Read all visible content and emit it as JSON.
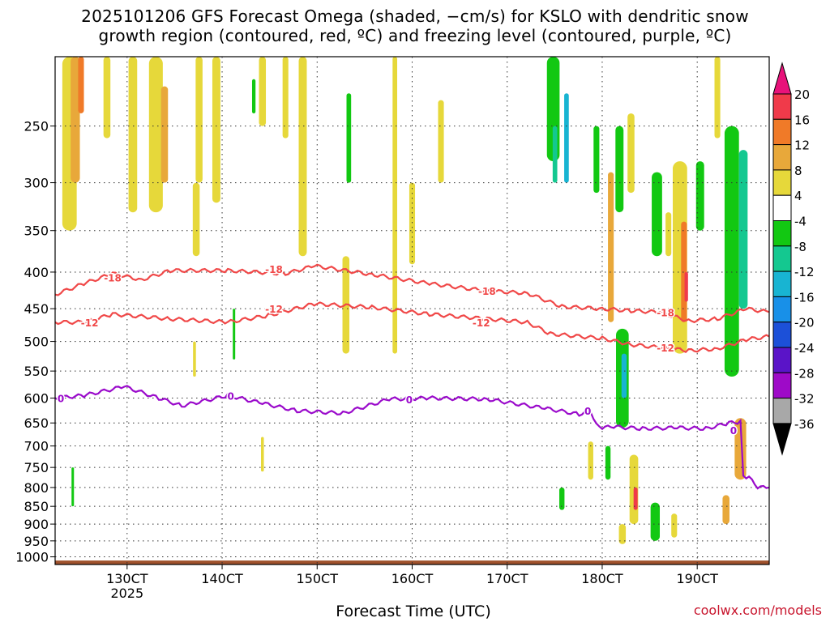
{
  "title_line1": "2025101206 GFS Forecast Omega (shaded, −cm/s) for KSLO with dendritic snow",
  "title_line2": "growth region (contoured, red, ºC) and freezing level (contoured, purple, ºC)",
  "credit": "coolwx.com/models",
  "colors": {
    "dgz": "#f04848",
    "freezing": "#9a0acb",
    "terrain": "#a0522d",
    "grid": "#333333"
  },
  "chart_data": {
    "type": "heatmap",
    "title": "2025101206 GFS Forecast Omega (shaded, −cm/s) for KSLO with dendritic snow growth region (contoured, red, ºC) and freezing level (contoured, purple, ºC)",
    "xlabel": "Forecast Time (UTC)",
    "ylabel": "",
    "x_range_hours": [
      0,
      124
    ],
    "y_range_hPa": [
      1025,
      200
    ],
    "y_scale": "log-pressure",
    "y_ticks": [
      250,
      300,
      350,
      400,
      450,
      500,
      550,
      600,
      650,
      700,
      750,
      800,
      850,
      900,
      950,
      1000
    ],
    "x_ticks": [
      {
        "hour": 12.5,
        "label": "130CT",
        "sublabel": "2025"
      },
      {
        "hour": 29,
        "label": "140CT"
      },
      {
        "hour": 45.5,
        "label": "150CT"
      },
      {
        "hour": 62,
        "label": "160CT"
      },
      {
        "hour": 78.5,
        "label": "170CT"
      },
      {
        "hour": 95,
        "label": "180CT"
      },
      {
        "hour": 111.5,
        "label": "190CT"
      }
    ],
    "colorbar": {
      "labels": [
        "20",
        "16",
        "12",
        "8",
        "4",
        "-4",
        "-8",
        "-12",
        "-16",
        "-20",
        "-24",
        "-28",
        "-32",
        "-36"
      ],
      "bins": [
        {
          "lo": 16,
          "hi": 20,
          "color": "#f03a4a"
        },
        {
          "lo": 12,
          "hi": 16,
          "color": "#f07a28"
        },
        {
          "lo": 8,
          "hi": 12,
          "color": "#e8a83a"
        },
        {
          "lo": 4,
          "hi": 8,
          "color": "#e6d83a"
        },
        {
          "lo": -4,
          "hi": 4,
          "color": "#ffffff"
        },
        {
          "lo": -8,
          "hi": -4,
          "color": "#12c812"
        },
        {
          "lo": -12,
          "hi": -8,
          "color": "#14c890"
        },
        {
          "lo": -16,
          "hi": -12,
          "color": "#18b4d2"
        },
        {
          "lo": -20,
          "hi": -16,
          "color": "#1890e8"
        },
        {
          "lo": -24,
          "hi": -20,
          "color": "#1c50d8"
        },
        {
          "lo": -28,
          "hi": -24,
          "color": "#5a14c8"
        },
        {
          "lo": -32,
          "hi": -28,
          "color": "#9e0ac8"
        },
        {
          "lo": -36,
          "hi": -32,
          "color": "#a8a8a8"
        }
      ],
      "top_arrow_color": "#e8127a",
      "bottom_arrow_color": "#000000"
    },
    "omega_blobs": [
      {
        "t": 2.5,
        "p1": 200,
        "p2": 350,
        "w": 2.5,
        "v": 5
      },
      {
        "t": 3.5,
        "p1": 200,
        "p2": 300,
        "w": 1.6,
        "v": 9
      },
      {
        "t": 4.5,
        "p1": 200,
        "p2": 240,
        "w": 1.0,
        "v": 13
      },
      {
        "t": 9,
        "p1": 200,
        "p2": 260,
        "w": 1.2,
        "v": 5
      },
      {
        "t": 13.5,
        "p1": 200,
        "p2": 330,
        "w": 1.5,
        "v": 5
      },
      {
        "t": 17.5,
        "p1": 200,
        "p2": 330,
        "w": 2.4,
        "v": 5
      },
      {
        "t": 19,
        "p1": 220,
        "p2": 300,
        "w": 1.2,
        "v": 9
      },
      {
        "t": 25,
        "p1": 200,
        "p2": 300,
        "w": 1.2,
        "v": 5
      },
      {
        "t": 28,
        "p1": 200,
        "p2": 320,
        "w": 1.4,
        "v": 5
      },
      {
        "t": 24.5,
        "p1": 300,
        "p2": 380,
        "w": 1.2,
        "v": 5
      },
      {
        "t": 36,
        "p1": 200,
        "p2": 250,
        "w": 1.2,
        "v": 5
      },
      {
        "t": 34.5,
        "p1": 215,
        "p2": 240,
        "w": 0.6,
        "v": -5
      },
      {
        "t": 43,
        "p1": 200,
        "p2": 380,
        "w": 1.4,
        "v": 5
      },
      {
        "t": 40,
        "p1": 200,
        "p2": 260,
        "w": 1.0,
        "v": 5
      },
      {
        "t": 50.5,
        "p1": 380,
        "p2": 520,
        "w": 1.2,
        "v": 5
      },
      {
        "t": 51,
        "p1": 225,
        "p2": 300,
        "w": 0.8,
        "v": -5
      },
      {
        "t": 59,
        "p1": 200,
        "p2": 520,
        "w": 0.8,
        "v": 5
      },
      {
        "t": 67,
        "p1": 230,
        "p2": 300,
        "w": 1.0,
        "v": 5
      },
      {
        "t": 62,
        "p1": 300,
        "p2": 390,
        "w": 1.0,
        "v": 5
      },
      {
        "t": 86.5,
        "p1": 200,
        "p2": 280,
        "w": 2.2,
        "v": -6
      },
      {
        "t": 86.8,
        "p1": 250,
        "p2": 300,
        "w": 0.8,
        "v": -10
      },
      {
        "t": 88.8,
        "p1": 225,
        "p2": 300,
        "w": 0.8,
        "v": -13
      },
      {
        "t": 96.5,
        "p1": 290,
        "p2": 470,
        "w": 1.0,
        "v": 9
      },
      {
        "t": 94,
        "p1": 250,
        "p2": 310,
        "w": 1.0,
        "v": -5
      },
      {
        "t": 98,
        "p1": 250,
        "p2": 330,
        "w": 1.4,
        "v": -6
      },
      {
        "t": 100,
        "p1": 240,
        "p2": 310,
        "w": 1.2,
        "v": 5
      },
      {
        "t": 98.5,
        "p1": 480,
        "p2": 660,
        "w": 2.2,
        "v": -7
      },
      {
        "t": 98.8,
        "p1": 520,
        "p2": 600,
        "w": 0.9,
        "v": -14
      },
      {
        "t": 104.5,
        "p1": 290,
        "p2": 380,
        "w": 1.8,
        "v": -6
      },
      {
        "t": 106.5,
        "p1": 330,
        "p2": 380,
        "w": 1.0,
        "v": 5
      },
      {
        "t": 108.5,
        "p1": 280,
        "p2": 520,
        "w": 2.5,
        "v": 7
      },
      {
        "t": 109.2,
        "p1": 340,
        "p2": 470,
        "w": 1.0,
        "v": 13
      },
      {
        "t": 109.6,
        "p1": 400,
        "p2": 440,
        "w": 0.6,
        "v": 19
      },
      {
        "t": 112,
        "p1": 280,
        "p2": 350,
        "w": 1.4,
        "v": -6
      },
      {
        "t": 115,
        "p1": 200,
        "p2": 260,
        "w": 1.0,
        "v": 5
      },
      {
        "t": 117.5,
        "p1": 250,
        "p2": 560,
        "w": 2.5,
        "v": -6
      },
      {
        "t": 119.5,
        "p1": 270,
        "p2": 450,
        "w": 1.5,
        "v": -11
      },
      {
        "t": 100.5,
        "p1": 720,
        "p2": 900,
        "w": 1.5,
        "v": 8
      },
      {
        "t": 100.8,
        "p1": 800,
        "p2": 860,
        "w": 0.7,
        "v": 19
      },
      {
        "t": 98.5,
        "p1": 900,
        "p2": 960,
        "w": 1.2,
        "v": 6
      },
      {
        "t": 104.2,
        "p1": 840,
        "p2": 950,
        "w": 1.6,
        "v": -7
      },
      {
        "t": 107.5,
        "p1": 870,
        "p2": 940,
        "w": 1.0,
        "v": 7
      },
      {
        "t": 119,
        "p1": 640,
        "p2": 780,
        "w": 2.0,
        "v": 10
      },
      {
        "t": 116.5,
        "p1": 820,
        "p2": 900,
        "w": 1.2,
        "v": 10
      },
      {
        "t": 93,
        "p1": 690,
        "p2": 780,
        "w": 0.9,
        "v": 5
      },
      {
        "t": 96,
        "p1": 700,
        "p2": 780,
        "w": 0.9,
        "v": -6
      },
      {
        "t": 88,
        "p1": 800,
        "p2": 860,
        "w": 0.9,
        "v": -6
      },
      {
        "t": 36,
        "p1": 680,
        "p2": 760,
        "w": 0.5,
        "v": 5
      },
      {
        "t": 24.2,
        "p1": 500,
        "p2": 560,
        "w": 0.5,
        "v": 5
      },
      {
        "t": 31,
        "p1": 450,
        "p2": 530,
        "w": 0.3,
        "v": -6
      },
      {
        "t": 3,
        "p1": 750,
        "p2": 850,
        "w": 0.3,
        "v": -6
      }
    ],
    "dgz_minus18_hPa": [
      {
        "t": 0,
        "p": 430
      },
      {
        "t": 5,
        "p": 415
      },
      {
        "t": 10,
        "p": 402
      },
      {
        "t": 15,
        "p": 410
      },
      {
        "t": 20,
        "p": 398
      },
      {
        "t": 30,
        "p": 398
      },
      {
        "t": 40,
        "p": 402
      },
      {
        "t": 45,
        "p": 392
      },
      {
        "t": 55,
        "p": 403
      },
      {
        "t": 65,
        "p": 415
      },
      {
        "t": 75,
        "p": 425
      },
      {
        "t": 82,
        "p": 428
      },
      {
        "t": 88,
        "p": 447
      },
      {
        "t": 95,
        "p": 450
      },
      {
        "t": 100,
        "p": 453
      },
      {
        "t": 105,
        "p": 455
      },
      {
        "t": 110,
        "p": 468
      },
      {
        "t": 115,
        "p": 465
      },
      {
        "t": 120,
        "p": 450
      },
      {
        "t": 124,
        "p": 455
      }
    ],
    "dgz_minus12_hPa": [
      {
        "t": 0,
        "p": 470
      },
      {
        "t": 5,
        "p": 470
      },
      {
        "t": 10,
        "p": 458
      },
      {
        "t": 20,
        "p": 465
      },
      {
        "t": 30,
        "p": 470
      },
      {
        "t": 37,
        "p": 460
      },
      {
        "t": 45,
        "p": 443
      },
      {
        "t": 55,
        "p": 448
      },
      {
        "t": 65,
        "p": 458
      },
      {
        "t": 75,
        "p": 465
      },
      {
        "t": 82,
        "p": 470
      },
      {
        "t": 86,
        "p": 488
      },
      {
        "t": 95,
        "p": 495
      },
      {
        "t": 100,
        "p": 505
      },
      {
        "t": 105,
        "p": 510
      },
      {
        "t": 110,
        "p": 515
      },
      {
        "t": 115,
        "p": 512
      },
      {
        "t": 120,
        "p": 497
      },
      {
        "t": 124,
        "p": 492
      }
    ],
    "freezing_level_hPa": [
      {
        "t": 0,
        "p": 600
      },
      {
        "t": 5,
        "p": 595
      },
      {
        "t": 12,
        "p": 578
      },
      {
        "t": 18,
        "p": 600
      },
      {
        "t": 22,
        "p": 615
      },
      {
        "t": 30,
        "p": 595
      },
      {
        "t": 36,
        "p": 610
      },
      {
        "t": 42,
        "p": 625
      },
      {
        "t": 50,
        "p": 630
      },
      {
        "t": 58,
        "p": 602
      },
      {
        "t": 65,
        "p": 600
      },
      {
        "t": 75,
        "p": 602
      },
      {
        "t": 85,
        "p": 620
      },
      {
        "t": 91,
        "p": 632
      },
      {
        "t": 93,
        "p": 625
      },
      {
        "t": 94,
        "p": 655
      },
      {
        "t": 95,
        "p": 660
      },
      {
        "t": 97,
        "p": 658
      },
      {
        "t": 102,
        "p": 662
      },
      {
        "t": 108,
        "p": 660
      },
      {
        "t": 113,
        "p": 662
      },
      {
        "t": 117,
        "p": 650
      },
      {
        "t": 119,
        "p": 648
      },
      {
        "t": 119.5,
        "p": 770
      },
      {
        "t": 120.5,
        "p": 775
      },
      {
        "t": 122,
        "p": 800
      },
      {
        "t": 124,
        "p": 800
      }
    ],
    "contour_labels": [
      {
        "t": 10,
        "p": 407,
        "text": "-18",
        "line": "dgz"
      },
      {
        "t": 38,
        "p": 396,
        "text": "-18",
        "line": "dgz"
      },
      {
        "t": 75,
        "p": 425,
        "text": "-18",
        "line": "dgz"
      },
      {
        "t": 106,
        "p": 455,
        "text": "-18",
        "line": "dgz"
      },
      {
        "t": 6,
        "p": 470,
        "text": "-12",
        "line": "dgz"
      },
      {
        "t": 38,
        "p": 450,
        "text": "-12",
        "line": "dgz"
      },
      {
        "t": 74,
        "p": 470,
        "text": "-12",
        "line": "dgz"
      },
      {
        "t": 106,
        "p": 510,
        "text": "-12",
        "line": "dgz"
      },
      {
        "t": 1,
        "p": 600,
        "text": "0",
        "line": "freezing"
      },
      {
        "t": 30.5,
        "p": 595,
        "text": "0",
        "line": "freezing"
      },
      {
        "t": 61.5,
        "p": 602,
        "text": "0",
        "line": "freezing"
      },
      {
        "t": 92.5,
        "p": 625,
        "text": "0",
        "line": "freezing"
      },
      {
        "t": 117.8,
        "p": 665,
        "text": "0",
        "line": "freezing"
      }
    ],
    "terrain_top_hPa": 1012
  }
}
